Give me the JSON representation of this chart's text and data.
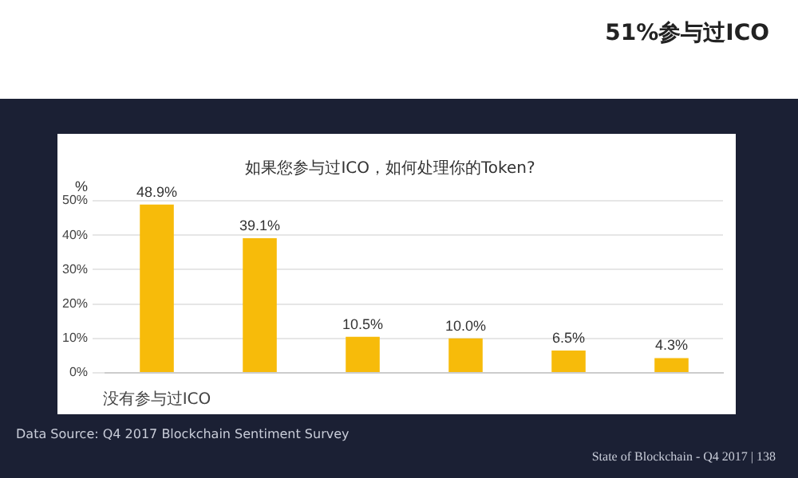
{
  "chart_data": {
    "type": "bar",
    "title": "如果您参与过ICO，如何处理你的Token?",
    "categories": [
      "没有参与过ICO",
      null,
      null,
      null,
      null,
      null
    ],
    "values": [
      48.9,
      39.1,
      10.5,
      10.0,
      6.5,
      4.3
    ],
    "value_labels": [
      "48.9%",
      "39.1%",
      "10.5%",
      "10.0%",
      "6.5%",
      "4.3%"
    ],
    "color": "#f7bb0a",
    "ylabel": "%",
    "ylim": [
      0,
      50
    ],
    "yticks": [
      {
        "value": 0,
        "label": "0%"
      },
      {
        "value": 10,
        "label": "10%"
      },
      {
        "value": 20,
        "label": "20%"
      },
      {
        "value": 30,
        "label": "30%"
      },
      {
        "value": 40,
        "label": "40%"
      },
      {
        "value": 50,
        "label": "50%"
      }
    ],
    "grid": "y",
    "legend": false,
    "annotations": [
      "51%参与过ICO",
      "Data Source: Q4 2017 Blockchain Sentiment Survey",
      "State of Blockchain - Q4 2017  |  138"
    ]
  }
}
